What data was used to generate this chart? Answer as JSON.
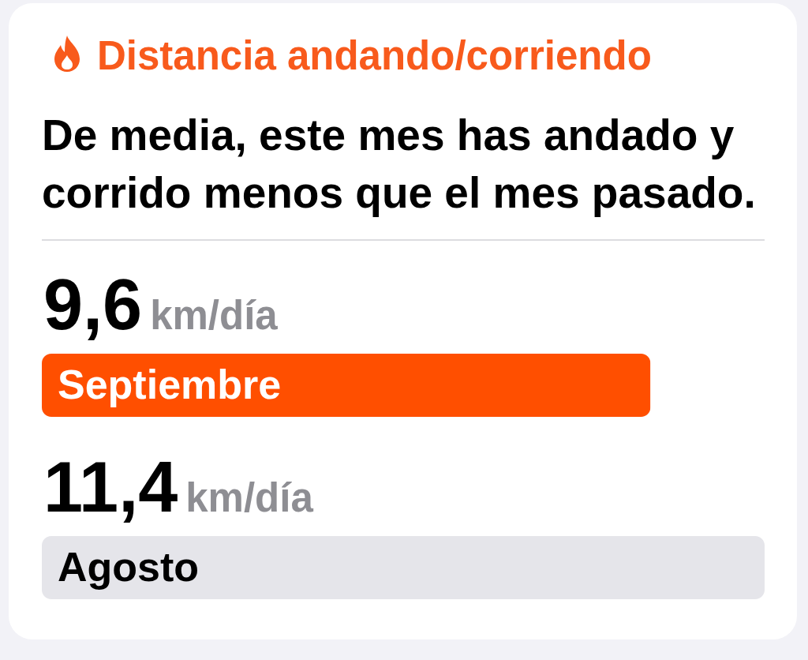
{
  "chart_data": {
    "type": "bar",
    "orientation": "horizontal",
    "title": "Distancia andando/corriendo",
    "subtitle": "De media, este mes has andado y corrido menos que el mes pasado.",
    "categories": [
      "Septiembre",
      "Agosto"
    ],
    "values": [
      9.6,
      11.4
    ],
    "colors": [
      "#ff4f00",
      "#e5e5ea"
    ],
    "value_labels": [
      "9,6",
      "11,4"
    ],
    "xlabel": "km/día"
  }
}
